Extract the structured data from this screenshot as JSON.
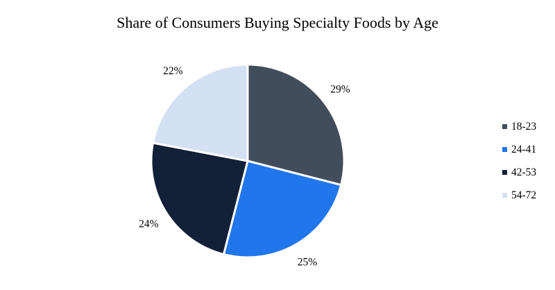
{
  "chart_data": {
    "type": "pie",
    "title": "Share of Consumers Buying Specialty Foods by Age",
    "categories": [
      "18-23",
      "24-41",
      "42-53",
      "54-72"
    ],
    "values": [
      29,
      25,
      24,
      22
    ],
    "labels": [
      "29%",
      "25%",
      "24%",
      "22%"
    ],
    "colors": [
      "#424d5c",
      "#2176eb",
      "#122038",
      "#d4e1f3"
    ],
    "start_angle": "12 o'clock",
    "direction": "clockwise",
    "legend_position": "right"
  }
}
